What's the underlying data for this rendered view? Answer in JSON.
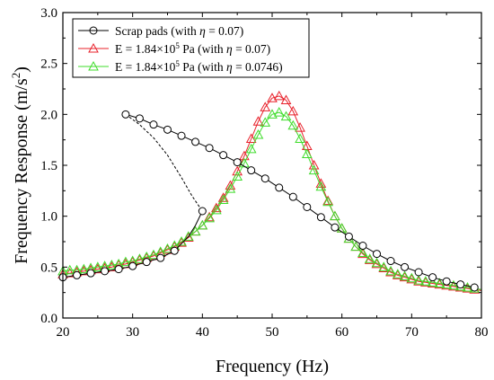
{
  "chart_data": {
    "type": "line",
    "xlabel": "Frequency (Hz)",
    "ylabel_main": "Frequency Response (m/s",
    "ylabel_sup": "2",
    "ylabel_end": ")",
    "xlim": [
      20,
      80
    ],
    "ylim": [
      0.0,
      3.0
    ],
    "xticks": [
      20,
      30,
      40,
      50,
      60,
      70,
      80
    ],
    "yticks": [
      "0.0",
      "0.5",
      "1.0",
      "1.5",
      "2.0",
      "2.5",
      "3.0"
    ],
    "grid": false,
    "legend_position": "top-left",
    "legend": [
      {
        "pre": "Scrap pads (with ",
        "eta": "η",
        "post": " = 0.07)"
      },
      {
        "pre": "E = 1.84×10",
        "sup": "5",
        "mid": " Pa (with ",
        "eta": "η",
        "post": " = 0.07)"
      },
      {
        "pre": "E = 1.84×10",
        "sup": "5",
        "mid": " Pa (with ",
        "eta": "η",
        "post": " = 0.0746)"
      }
    ],
    "series": [
      {
        "name": "Scrap pads (with η = 0.07)",
        "color": "#000000",
        "marker": "circle",
        "lower_branch": {
          "x": [
            20,
            22,
            24,
            26,
            28,
            30,
            32,
            34,
            36,
            37,
            38,
            39,
            40
          ],
          "y": [
            0.4,
            0.42,
            0.44,
            0.46,
            0.48,
            0.51,
            0.55,
            0.59,
            0.66,
            0.73,
            0.8,
            0.91,
            1.05
          ]
        },
        "marked_x": [
          20,
          22,
          24,
          26,
          28,
          30,
          32,
          34,
          36,
          40
        ],
        "upper_branch": {
          "x": [
            29,
            31,
            33,
            35,
            37,
            39,
            41,
            43,
            45,
            47,
            49,
            51,
            53,
            55,
            57,
            59,
            61,
            63,
            65,
            67,
            69,
            71,
            73,
            75,
            77,
            79
          ],
          "y": [
            2.0,
            1.96,
            1.9,
            1.85,
            1.79,
            1.73,
            1.67,
            1.6,
            1.53,
            1.45,
            1.37,
            1.28,
            1.19,
            1.09,
            0.99,
            0.89,
            0.8,
            0.71,
            0.63,
            0.56,
            0.5,
            0.45,
            0.4,
            0.36,
            0.33,
            0.3
          ]
        },
        "jump_curve": {
          "x": [
            29,
            31,
            33,
            35,
            37,
            38.5,
            40
          ],
          "y": [
            2.0,
            1.9,
            1.77,
            1.6,
            1.38,
            1.2,
            1.05
          ]
        }
      },
      {
        "name": "E = 1.84×10^5 Pa (with η = 0.07)",
        "color": "#e8202a",
        "marker": "triangle",
        "x": [
          20,
          21,
          22,
          23,
          24,
          25,
          26,
          27,
          28,
          29,
          30,
          31,
          32,
          33,
          34,
          35,
          36,
          37,
          38,
          39,
          40,
          41,
          42,
          43,
          44,
          45,
          46,
          47,
          48,
          49,
          50,
          51,
          52,
          53,
          54,
          55,
          56,
          57,
          58,
          59,
          60,
          61,
          62,
          63,
          64,
          65,
          66,
          67,
          68,
          69,
          70,
          71,
          72,
          73,
          74,
          75,
          76,
          77,
          78,
          79,
          80
        ],
        "y": [
          0.43,
          0.44,
          0.45,
          0.46,
          0.47,
          0.48,
          0.49,
          0.5,
          0.52,
          0.53,
          0.55,
          0.57,
          0.59,
          0.61,
          0.64,
          0.67,
          0.7,
          0.74,
          0.79,
          0.85,
          0.91,
          0.99,
          1.08,
          1.18,
          1.3,
          1.44,
          1.59,
          1.76,
          1.93,
          2.07,
          2.16,
          2.18,
          2.14,
          2.03,
          1.87,
          1.69,
          1.5,
          1.32,
          1.15,
          1.0,
          0.88,
          0.78,
          0.7,
          0.63,
          0.57,
          0.53,
          0.49,
          0.45,
          0.42,
          0.4,
          0.38,
          0.36,
          0.35,
          0.34,
          0.33,
          0.32,
          0.31,
          0.3,
          0.29,
          0.28,
          0.27
        ]
      },
      {
        "name": "E = 1.84×10^5 Pa (with η = 0.0746)",
        "color": "#3fdc2b",
        "marker": "triangle",
        "x": [
          20,
          21,
          22,
          23,
          24,
          25,
          26,
          27,
          28,
          29,
          30,
          31,
          32,
          33,
          34,
          35,
          36,
          37,
          38,
          39,
          40,
          41,
          42,
          43,
          44,
          45,
          46,
          47,
          48,
          49,
          50,
          51,
          52,
          53,
          54,
          55,
          56,
          57,
          58,
          59,
          60,
          61,
          62,
          63,
          64,
          65,
          66,
          67,
          68,
          69,
          70,
          71,
          72,
          73,
          74,
          75,
          76,
          77,
          78,
          79,
          80
        ],
        "y": [
          0.46,
          0.47,
          0.47,
          0.48,
          0.49,
          0.5,
          0.51,
          0.52,
          0.53,
          0.55,
          0.56,
          0.58,
          0.6,
          0.62,
          0.65,
          0.68,
          0.71,
          0.75,
          0.8,
          0.85,
          0.91,
          0.98,
          1.06,
          1.16,
          1.27,
          1.39,
          1.52,
          1.66,
          1.8,
          1.92,
          2.0,
          2.02,
          1.98,
          1.89,
          1.76,
          1.61,
          1.45,
          1.29,
          1.14,
          1.0,
          0.88,
          0.78,
          0.7,
          0.64,
          0.58,
          0.54,
          0.5,
          0.46,
          0.43,
          0.41,
          0.39,
          0.37,
          0.36,
          0.35,
          0.34,
          0.33,
          0.32,
          0.31,
          0.3,
          0.29,
          0.28
        ]
      }
    ]
  }
}
